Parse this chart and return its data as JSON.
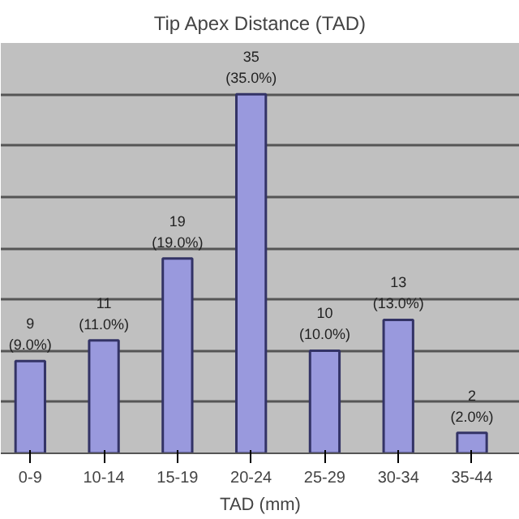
{
  "chart_data": {
    "type": "bar",
    "title": "Tip Apex Distance (TAD)",
    "xlabel": "TAD (mm)",
    "categories": [
      "0-9",
      "10-14",
      "15-19",
      "20-24",
      "25-29",
      "30-34",
      "35-44"
    ],
    "values": [
      9,
      11,
      19,
      35,
      10,
      13,
      2
    ],
    "value_labels": [
      "9\n(9.0%)",
      "11\n(11.0%)",
      "19\n(19.0%)",
      "35\n(35.0%)",
      "10\n(10.0%)",
      "13\n(13.0%)",
      "2\n(2.0%)"
    ],
    "color": "#9999dd",
    "ylim": [
      0,
      40
    ],
    "yticks": [
      {
        "value": 0,
        "label": null
      },
      {
        "value": 5,
        "label": null
      },
      {
        "value": 10,
        "label": null
      },
      {
        "value": 15,
        "label": null
      },
      {
        "value": 20,
        "label": null
      },
      {
        "value": 25,
        "label": null
      },
      {
        "value": 30,
        "label": null
      },
      {
        "value": 35,
        "label": null
      },
      {
        "value": 40,
        "label": null
      }
    ],
    "grid": "y",
    "tick_labels": "x"
  }
}
